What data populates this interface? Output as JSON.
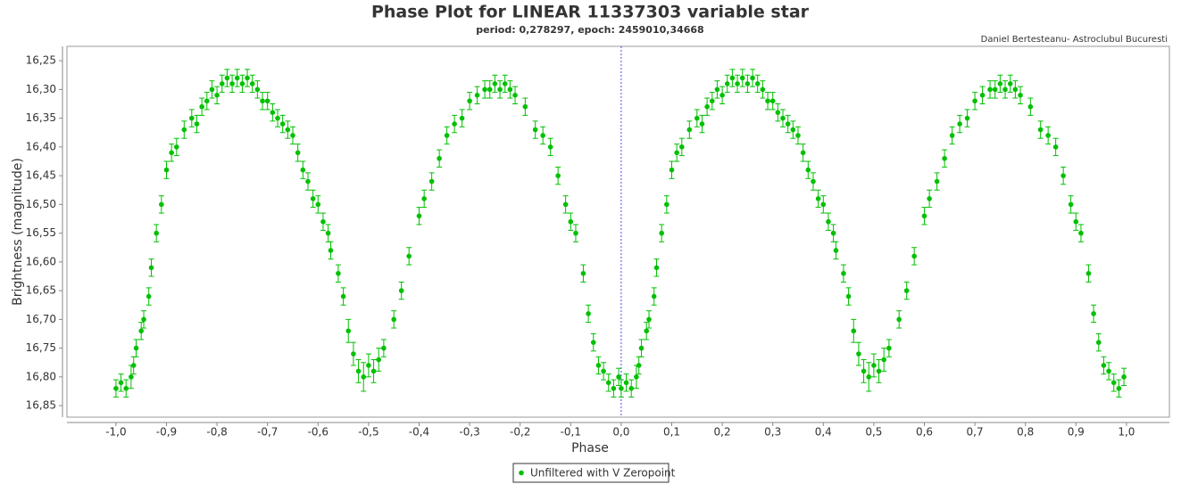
{
  "chart_data": {
    "type": "scatter",
    "title": "Phase Plot for LINEAR 11337303 variable star",
    "subtitle": "period: 0,278297, epoch: 2459010,34668",
    "credit": "Daniel Bertesteanu- Astroclubul Bucuresti",
    "x_label": "Phase",
    "y_label": "Brightness (magnitude)",
    "xlim": [
      -1.097,
      1.085
    ],
    "ylim": [
      16.225,
      16.87
    ],
    "y_inverted": true,
    "grid": false,
    "vline": 0,
    "vline_color": "#4a4aff",
    "legend": "bottom",
    "xticks": [
      {
        "value": -1.0,
        "label": "-1,0"
      },
      {
        "value": -0.9,
        "label": "-0,9"
      },
      {
        "value": -0.8,
        "label": "-0,8"
      },
      {
        "value": -0.7,
        "label": "-0,7"
      },
      {
        "value": -0.6,
        "label": "-0,6"
      },
      {
        "value": -0.5,
        "label": "-0,5"
      },
      {
        "value": -0.4,
        "label": "-0,4"
      },
      {
        "value": -0.3,
        "label": "-0,3"
      },
      {
        "value": -0.2,
        "label": "-0,2"
      },
      {
        "value": -0.1,
        "label": "-0,1"
      },
      {
        "value": 0.0,
        "label": "0,0"
      },
      {
        "value": 0.1,
        "label": "0,1"
      },
      {
        "value": 0.2,
        "label": "0,2"
      },
      {
        "value": 0.3,
        "label": "0,3"
      },
      {
        "value": 0.4,
        "label": "0,4"
      },
      {
        "value": 0.5,
        "label": "0,5"
      },
      {
        "value": 0.6,
        "label": "0,6"
      },
      {
        "value": 0.7,
        "label": "0,7"
      },
      {
        "value": 0.8,
        "label": "0,8"
      },
      {
        "value": 0.9,
        "label": "0,9"
      },
      {
        "value": 1.0,
        "label": "1,0"
      }
    ],
    "yticks": [
      {
        "value": 16.25,
        "label": "16,25"
      },
      {
        "value": 16.3,
        "label": "16,30"
      },
      {
        "value": 16.35,
        "label": "16,35"
      },
      {
        "value": 16.4,
        "label": "16,40"
      },
      {
        "value": 16.45,
        "label": "16,45"
      },
      {
        "value": 16.5,
        "label": "16,50"
      },
      {
        "value": 16.55,
        "label": "16,55"
      },
      {
        "value": 16.6,
        "label": "16,60"
      },
      {
        "value": 16.65,
        "label": "16,65"
      },
      {
        "value": 16.7,
        "label": "16,70"
      },
      {
        "value": 16.75,
        "label": "16,75"
      },
      {
        "value": 16.8,
        "label": "16,80"
      },
      {
        "value": 16.85,
        "label": "16,85"
      }
    ],
    "series": [
      {
        "name": "Unfiltered with V Zeropoint",
        "color": "#00c000",
        "x": [
          -1,
          -0.99,
          -0.98,
          -0.97,
          -0.965,
          -0.96,
          -0.95,
          -0.945,
          -0.935,
          -0.93,
          -0.92,
          -0.91,
          -0.9,
          -0.89,
          -0.88,
          -0.865,
          -0.85,
          -0.84,
          -0.83,
          -0.82,
          -0.81,
          -0.8,
          -0.79,
          -0.78,
          -0.77,
          -0.76,
          -0.75,
          -0.74,
          -0.73,
          -0.72,
          -0.71,
          -0.7,
          -0.69,
          -0.68,
          -0.67,
          -0.66,
          -0.65,
          -0.64,
          -0.63,
          -0.62,
          -0.61,
          -0.6,
          -0.59,
          -0.58,
          -0.575,
          -0.56,
          -0.55,
          -0.54,
          -0.53,
          -0.52,
          -0.51,
          -0.5,
          -0.49,
          -0.48,
          -0.47,
          -0.45,
          -0.435,
          -0.42,
          -0.4,
          -0.39,
          -0.375,
          -0.36,
          -0.345,
          -0.33,
          -0.315,
          -0.3,
          -0.285,
          -0.27,
          -0.26,
          -0.25,
          -0.24,
          -0.23,
          -0.22,
          -0.21,
          -0.19,
          -0.17,
          -0.155,
          -0.14,
          -0.125,
          -0.11,
          -0.1,
          -0.09,
          -0.075,
          -0.065,
          -0.055,
          -0.045,
          -0.035,
          -0.025,
          -0.015,
          -0.005,
          0,
          0.01,
          0.02,
          0.03,
          0.035,
          0.04,
          0.05,
          0.055,
          0.065,
          0.07,
          0.08,
          0.09,
          0.1,
          0.11,
          0.12,
          0.135,
          0.15,
          0.16,
          0.17,
          0.18,
          0.19,
          0.2,
          0.21,
          0.22,
          0.23,
          0.24,
          0.25,
          0.26,
          0.27,
          0.28,
          0.29,
          0.3,
          0.31,
          0.32,
          0.33,
          0.34,
          0.35,
          0.36,
          0.37,
          0.38,
          0.39,
          0.4,
          0.41,
          0.42,
          0.425,
          0.44,
          0.45,
          0.46,
          0.47,
          0.48,
          0.49,
          0.5,
          0.51,
          0.52,
          0.53,
          0.55,
          0.565,
          0.58,
          0.6,
          0.61,
          0.625,
          0.64,
          0.655,
          0.67,
          0.685,
          0.7,
          0.715,
          0.73,
          0.74,
          0.75,
          0.76,
          0.77,
          0.78,
          0.79,
          0.81,
          0.83,
          0.845,
          0.86,
          0.875,
          0.89,
          0.9,
          0.91,
          0.925,
          0.935,
          0.945,
          0.955,
          0.965,
          0.975,
          0.985,
          0.995
        ],
        "y": [
          16.82,
          16.81,
          16.82,
          16.8,
          16.78,
          16.75,
          16.72,
          16.7,
          16.66,
          16.61,
          16.55,
          16.5,
          16.44,
          16.41,
          16.4,
          16.37,
          16.35,
          16.36,
          16.33,
          16.32,
          16.3,
          16.31,
          16.29,
          16.28,
          16.29,
          16.28,
          16.29,
          16.28,
          16.29,
          16.3,
          16.32,
          16.32,
          16.34,
          16.35,
          16.36,
          16.37,
          16.38,
          16.41,
          16.44,
          16.46,
          16.49,
          16.5,
          16.53,
          16.55,
          16.58,
          16.62,
          16.66,
          16.72,
          16.76,
          16.79,
          16.8,
          16.78,
          16.79,
          16.77,
          16.75,
          16.7,
          16.65,
          16.59,
          16.52,
          16.49,
          16.46,
          16.42,
          16.38,
          16.36,
          16.35,
          16.32,
          16.31,
          16.3,
          16.3,
          16.29,
          16.3,
          16.29,
          16.3,
          16.31,
          16.33,
          16.37,
          16.38,
          16.4,
          16.45,
          16.5,
          16.53,
          16.55,
          16.62,
          16.69,
          16.74,
          16.78,
          16.79,
          16.81,
          16.82,
          16.8,
          16.82,
          16.81,
          16.82,
          16.8,
          16.78,
          16.75,
          16.72,
          16.7,
          16.66,
          16.61,
          16.55,
          16.5,
          16.44,
          16.41,
          16.4,
          16.37,
          16.35,
          16.36,
          16.33,
          16.32,
          16.3,
          16.31,
          16.29,
          16.28,
          16.29,
          16.28,
          16.29,
          16.28,
          16.29,
          16.3,
          16.32,
          16.32,
          16.34,
          16.35,
          16.36,
          16.37,
          16.38,
          16.41,
          16.44,
          16.46,
          16.49,
          16.5,
          16.53,
          16.55,
          16.58,
          16.62,
          16.66,
          16.72,
          16.76,
          16.79,
          16.8,
          16.78,
          16.79,
          16.77,
          16.75,
          16.7,
          16.65,
          16.59,
          16.52,
          16.49,
          16.46,
          16.42,
          16.38,
          16.36,
          16.35,
          16.32,
          16.31,
          16.3,
          16.3,
          16.29,
          16.3,
          16.29,
          16.3,
          16.31,
          16.33,
          16.37,
          16.38,
          16.4,
          16.45,
          16.5,
          16.53,
          16.55,
          16.62,
          16.69,
          16.74,
          16.78,
          16.79,
          16.81,
          16.82,
          16.8
        ],
        "errors": [
          0.015,
          0.015,
          0.015,
          0.02,
          0.015,
          0.015,
          0.015,
          0.015,
          0.015,
          0.015,
          0.015,
          0.015,
          0.015,
          0.015,
          0.015,
          0.015,
          0.015,
          0.015,
          0.015,
          0.015,
          0.015,
          0.015,
          0.015,
          0.015,
          0.015,
          0.015,
          0.015,
          0.015,
          0.015,
          0.015,
          0.015,
          0.015,
          0.015,
          0.015,
          0.015,
          0.015,
          0.015,
          0.015,
          0.015,
          0.015,
          0.015,
          0.015,
          0.015,
          0.015,
          0.015,
          0.015,
          0.015,
          0.02,
          0.02,
          0.02,
          0.025,
          0.02,
          0.02,
          0.02,
          0.015,
          0.015,
          0.015,
          0.015,
          0.015,
          0.015,
          0.015,
          0.015,
          0.015,
          0.015,
          0.015,
          0.015,
          0.015,
          0.015,
          0.015,
          0.015,
          0.015,
          0.015,
          0.015,
          0.015,
          0.015,
          0.015,
          0.015,
          0.015,
          0.015,
          0.015,
          0.015,
          0.015,
          0.015,
          0.015,
          0.015,
          0.015,
          0.015,
          0.015,
          0.015,
          0.015,
          0.015,
          0.015,
          0.015,
          0.02,
          0.015,
          0.015,
          0.015,
          0.015,
          0.015,
          0.015,
          0.015,
          0.015,
          0.015,
          0.015,
          0.015,
          0.015,
          0.015,
          0.015,
          0.015,
          0.015,
          0.015,
          0.015,
          0.015,
          0.015,
          0.015,
          0.015,
          0.015,
          0.015,
          0.015,
          0.015,
          0.015,
          0.015,
          0.015,
          0.015,
          0.015,
          0.015,
          0.015,
          0.015,
          0.015,
          0.015,
          0.015,
          0.015,
          0.015,
          0.015,
          0.015,
          0.015,
          0.015,
          0.02,
          0.02,
          0.02,
          0.025,
          0.02,
          0.02,
          0.02,
          0.015,
          0.015,
          0.015,
          0.015,
          0.015,
          0.015,
          0.015,
          0.015,
          0.015,
          0.015,
          0.015,
          0.015,
          0.015,
          0.015,
          0.015,
          0.015,
          0.015,
          0.015,
          0.015,
          0.015,
          0.015,
          0.015,
          0.015,
          0.015,
          0.015,
          0.015,
          0.015,
          0.015,
          0.015,
          0.015,
          0.015,
          0.015,
          0.015,
          0.015,
          0.015,
          0.015
        ]
      }
    ]
  }
}
